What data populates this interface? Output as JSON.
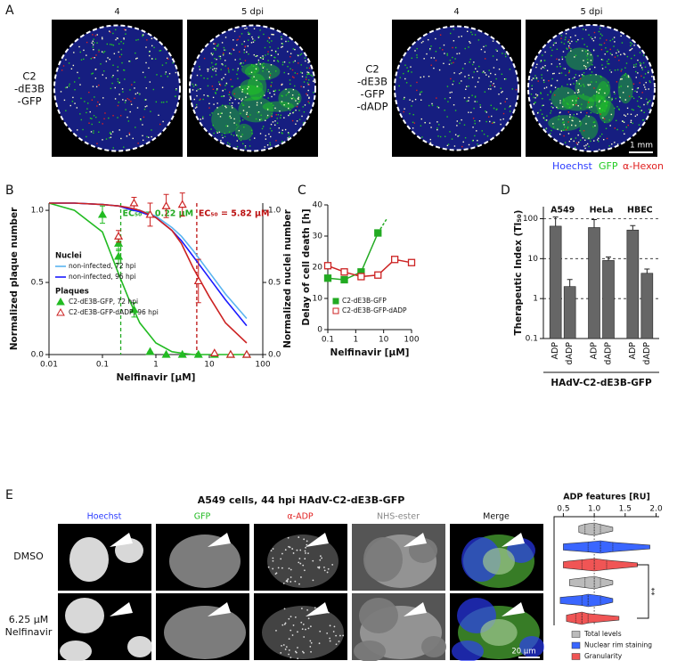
{
  "panel_labels": [
    "A",
    "B",
    "C",
    "D",
    "E"
  ],
  "panel_a": {
    "columns": [
      "4",
      "5 dpi",
      "4",
      "5 dpi"
    ],
    "row_labels": [
      [
        "C2",
        "-dE3B",
        "-GFP"
      ],
      [
        "C2",
        "-dE3B",
        "-GFP",
        "-dADP"
      ]
    ],
    "scale_bar": "1 mm",
    "stains": [
      {
        "name": "Hoechst",
        "color": "#2b3cff"
      },
      {
        "name": "GFP",
        "color": "#22cc22"
      },
      {
        "name": "α-Hexon",
        "color": "#e02020"
      }
    ]
  },
  "chart_data": [
    {
      "type": "line",
      "xlabel": "Nelfinavir [µM]",
      "ylabel": "Normalized plaque number",
      "y2label": "Normalized nuclei number",
      "log_x": true,
      "xlim": [
        0.01,
        100
      ],
      "xticks": [
        0.01,
        0.1,
        1,
        10,
        100
      ],
      "ylim": [
        0,
        1.05
      ],
      "yticks": [
        {
          "value": 0,
          "label": "0.0"
        },
        {
          "value": 0.5,
          "label": "0.5"
        },
        {
          "value": 1,
          "label": "1.0"
        }
      ],
      "y2lim": [
        0,
        1.05
      ],
      "y2ticks": [
        {
          "value": 0,
          "label": "0.0"
        },
        {
          "value": 0.5,
          "label": "0.5"
        },
        {
          "value": 1,
          "label": "1.0"
        }
      ],
      "legend_titles": [
        "Nuclei",
        "Plaques"
      ],
      "series": [
        {
          "name": "non-infected, 72 hpi",
          "color": "#5ab4f0",
          "axis": "y2",
          "x": [
            0.01,
            0.03,
            0.1,
            0.2,
            0.3,
            0.5,
            1,
            2,
            3,
            5,
            10,
            20,
            50
          ],
          "values": [
            1.05,
            1.05,
            1.04,
            1.03,
            1.02,
            1.0,
            0.96,
            0.88,
            0.82,
            0.72,
            0.57,
            0.42,
            0.25
          ]
        },
        {
          "name": "non-infected, 96 hpi",
          "color": "#1a1aff",
          "axis": "y2",
          "x": [
            0.01,
            0.03,
            0.1,
            0.2,
            0.3,
            0.5,
            1,
            2,
            3,
            5,
            10,
            20,
            50
          ],
          "values": [
            1.05,
            1.05,
            1.04,
            1.03,
            1.01,
            0.99,
            0.95,
            0.86,
            0.79,
            0.68,
            0.53,
            0.38,
            0.2
          ]
        },
        {
          "name": "C2-dE3B-GFP, 72 hpi",
          "color": "#22bb22",
          "marker": "filled",
          "x": [
            0.1,
            0.2,
            0.2,
            0.39,
            0.78,
            1.56,
            3.13,
            6.25,
            12.5,
            25,
            50
          ],
          "values": [
            0.97,
            0.77,
            0.68,
            0.31,
            0.02,
            0,
            0,
            0,
            0,
            0,
            0
          ],
          "errors": [
            0.06,
            0.05,
            0.05,
            0.05,
            0,
            0,
            0,
            0,
            0,
            0,
            0
          ],
          "fit_x": [
            0.01,
            0.03,
            0.1,
            0.2,
            0.3,
            0.5,
            1,
            2,
            3,
            5,
            10,
            20,
            50
          ],
          "fit_values": [
            1.05,
            1.0,
            0.85,
            0.56,
            0.4,
            0.22,
            0.08,
            0.02,
            0.01,
            0,
            0,
            0,
            0
          ]
        },
        {
          "name": "C2-dE3B-GFP-dADP, 96 hpi",
          "color": "#cc2222",
          "marker": "open",
          "x": [
            0.2,
            0.39,
            0.78,
            1.56,
            3.13,
            6.25,
            12.5,
            25,
            50
          ],
          "values": [
            0.82,
            1.05,
            0.97,
            1.03,
            1.04,
            0.51,
            0.01,
            0,
            0
          ],
          "errors": [
            0.04,
            0.04,
            0.08,
            0.08,
            0.08,
            0.15,
            0,
            0,
            0
          ],
          "fit_x": [
            0.01,
            0.03,
            0.1,
            0.2,
            0.3,
            0.5,
            1,
            2,
            3,
            5,
            10,
            20,
            50
          ],
          "fit_values": [
            1.05,
            1.05,
            1.04,
            1.03,
            1.02,
            1.0,
            0.95,
            0.86,
            0.77,
            0.6,
            0.4,
            0.22,
            0.08
          ]
        }
      ],
      "annotations": [
        {
          "text": "EC₅₀ = 0.22 µM",
          "x": 0.22,
          "color": "#22aa22"
        },
        {
          "text": "EC₅₀ = 5.82 µM",
          "x": 5.82,
          "color": "#bb1111"
        }
      ]
    },
    {
      "type": "line",
      "xlabel": "Nelfinavir [µM]",
      "ylabel": "Delay of cell death [h]",
      "log_x": true,
      "xlim": [
        0.1,
        100
      ],
      "xticks": [
        0.1,
        1,
        10,
        100
      ],
      "ylim": [
        0,
        40
      ],
      "yticks": [
        0,
        10,
        20,
        30,
        40
      ],
      "series": [
        {
          "name": "C2-dE3B-GFP",
          "color": "#22aa22",
          "marker": "filled",
          "x": [
            0.1,
            0.39,
            1.56,
            6.25
          ],
          "values": [
            16.5,
            16,
            18.5,
            31
          ]
        },
        {
          "name": "C2-dE3B-GFP-dADP",
          "color": "#cc2222",
          "marker": "open",
          "x": [
            0.1,
            0.39,
            1.56,
            6.25,
            25,
            100
          ],
          "values": [
            20.5,
            18.5,
            17,
            17.5,
            22.5,
            21.5
          ]
        }
      ]
    },
    {
      "type": "bar",
      "xlabel": "HAdV-C2-dE3B-GFP",
      "ylabel": "Therapeutic Index (TI₅₀)",
      "log_y": true,
      "ylim": [
        0.1,
        200
      ],
      "yticks": [
        0.1,
        1,
        10,
        100
      ],
      "grid": true,
      "groups": [
        "A549",
        "HeLa",
        "HBEC"
      ],
      "categories": [
        "ADP",
        "dADP",
        "ADP",
        "dADP",
        "ADP",
        "dADP"
      ],
      "values": [
        65,
        2,
        60,
        9,
        52,
        4.3
      ],
      "errors": [
        45,
        1,
        35,
        2,
        15,
        1.2
      ],
      "color": "#666666"
    },
    {
      "type": "violin",
      "title": "ADP features [RU]",
      "xlim": [
        0.35,
        2.05
      ],
      "xticks": [
        {
          "value": 0.5,
          "label": "0.5"
        },
        {
          "value": 1,
          "label": "1.0"
        },
        {
          "value": 1.5,
          "label": "1.5"
        },
        {
          "value": 2,
          "label": "2.0"
        }
      ],
      "reference": 1,
      "series": [
        {
          "name": "Total levels",
          "color": "#bbbbbb",
          "values": [
            {
              "min": 0.75,
              "q1": 0.85,
              "median": 1.0,
              "q3": 1.1,
              "max": 1.3
            },
            {
              "min": 0.6,
              "q1": 0.85,
              "median": 1.0,
              "q3": 1.1,
              "max": 1.3
            }
          ]
        },
        {
          "name": "Nuclear rim staining",
          "color": "#3a66ff",
          "values": [
            {
              "min": 0.5,
              "q1": 0.9,
              "median": 1.1,
              "q3": 1.3,
              "max": 1.9
            },
            {
              "min": 0.45,
              "q1": 0.8,
              "median": 0.9,
              "q3": 1.1,
              "max": 1.3
            }
          ]
        },
        {
          "name": "Granularity",
          "color": "#f05555",
          "values": [
            {
              "min": 0.5,
              "q1": 0.8,
              "median": 1.0,
              "q3": 1.2,
              "max": 1.7
            },
            {
              "min": 0.55,
              "q1": 0.7,
              "median": 0.8,
              "q3": 0.9,
              "max": 1.4
            }
          ]
        }
      ],
      "annotation": "**"
    }
  ],
  "panel_e": {
    "title": "A549 cells, 44 hpi HAdV-C2-dE3B-GFP",
    "columns": [
      {
        "name": "Hoechst",
        "color": "#2b3cff"
      },
      {
        "name": "GFP",
        "color": "#22bb22"
      },
      {
        "name": "α-ADP",
        "color": "#e02020"
      },
      {
        "name": "NHS-ester",
        "color": "#888888"
      },
      {
        "name": "Merge",
        "color": "#111111"
      }
    ],
    "row_labels": [
      [
        "DMSO"
      ],
      [
        "6.25 µM",
        "Nelfinavir"
      ]
    ],
    "scale_bar": "20 µm"
  }
}
